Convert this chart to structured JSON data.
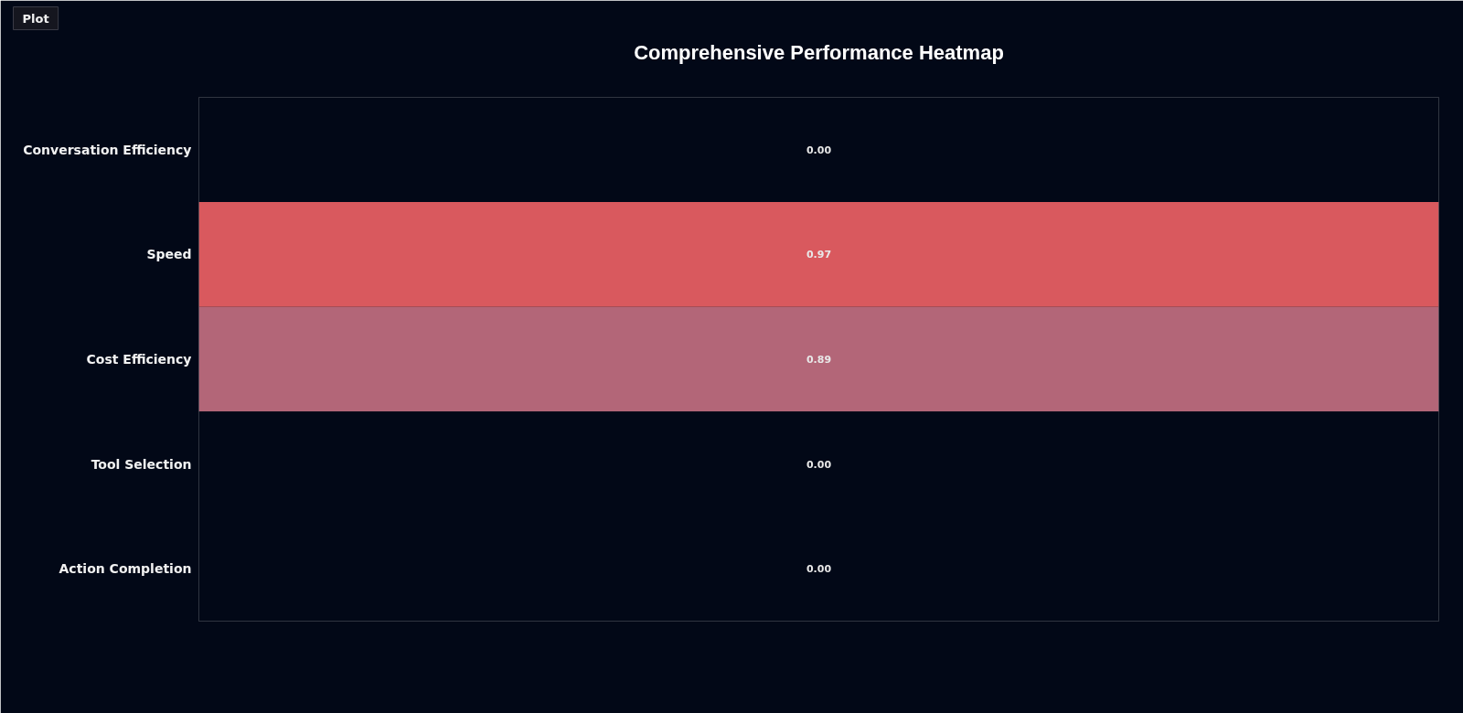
{
  "chart_data": {
    "type": "heatmap",
    "title": "Comprehensive Performance Heatmap",
    "categories": [
      null
    ],
    "y_categories": [
      "Conversation Efficiency",
      "Speed",
      "Cost Efficiency",
      "Tool Selection",
      "Action Completion"
    ],
    "cells": [
      [
        0.0
      ],
      [
        0.97
      ],
      [
        0.89
      ],
      [
        0.0
      ],
      [
        0.0
      ]
    ],
    "cell_labels": [
      [
        "0.00"
      ],
      [
        "0.97"
      ],
      [
        "0.89"
      ],
      [
        "0.00"
      ],
      [
        "0.00"
      ]
    ],
    "annotations": [
      "Plot"
    ]
  }
}
